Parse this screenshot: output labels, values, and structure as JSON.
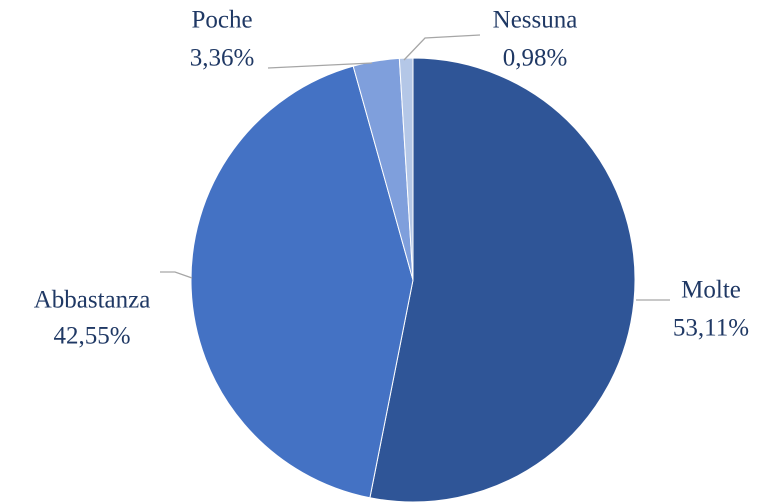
{
  "chart_data": {
    "type": "pie",
    "categories": [
      "Molte",
      "Abbastanza",
      "Poche",
      "Nessuna"
    ],
    "values": [
      53.11,
      42.55,
      3.36,
      0.98
    ],
    "value_labels": [
      "53,11%",
      "42,55%",
      "3,36%",
      "0,98%"
    ],
    "colors": [
      "#2f5597",
      "#4472c4",
      "#7f9fdc",
      "#b4c7e7"
    ]
  }
}
